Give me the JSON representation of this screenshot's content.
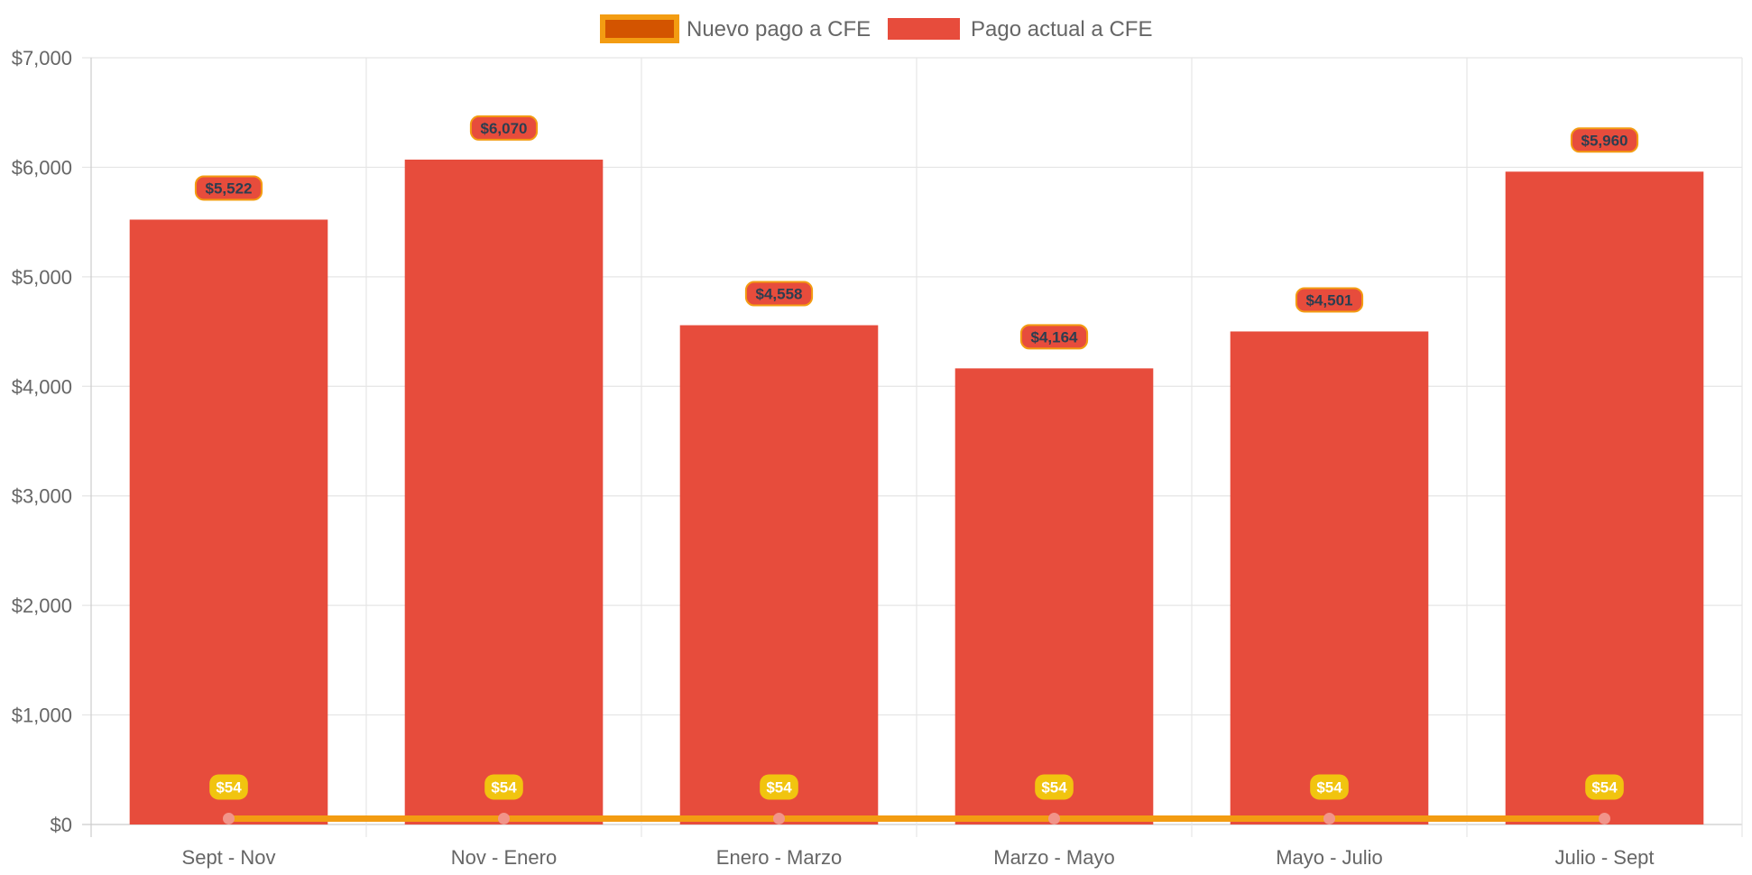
{
  "chart_data": {
    "type": "bar",
    "categories": [
      "Sept - Nov",
      "Nov - Enero",
      "Enero - Marzo",
      "Marzo - Mayo",
      "Mayo - Julio",
      "Julio - Sept"
    ],
    "series": [
      {
        "name": "Pago actual a CFE",
        "kind": "bar",
        "values": [
          5522,
          6070,
          4558,
          4164,
          4501,
          5960
        ],
        "labels": [
          "$5,522",
          "$6,070",
          "$4,558",
          "$4,164",
          "$4,501",
          "$5,960"
        ],
        "color": "#e74c3c"
      },
      {
        "name": "Nuevo pago a CFE",
        "kind": "line",
        "values": [
          54,
          54,
          54,
          54,
          54,
          54
        ],
        "labels": [
          "$54",
          "$54",
          "$54",
          "$54",
          "$54",
          "$54"
        ],
        "color": "#f39c12",
        "fill_color": "#d35400",
        "point_color": "#f1948a"
      }
    ],
    "y_ticks": [
      "$0",
      "$1,000",
      "$2,000",
      "$3,000",
      "$4,000",
      "$5,000",
      "$6,000",
      "$7,000"
    ],
    "ylim": [
      0,
      7000
    ],
    "legend_position": "top",
    "grid": true,
    "colors": {
      "grid": "#e5e5e5",
      "axis": "#cccccc",
      "label_border": "#f39c12",
      "bar_label_text": "#2c3e50",
      "line_label_bg": "#f1c40f",
      "line_label_text": "#ffffff"
    }
  }
}
